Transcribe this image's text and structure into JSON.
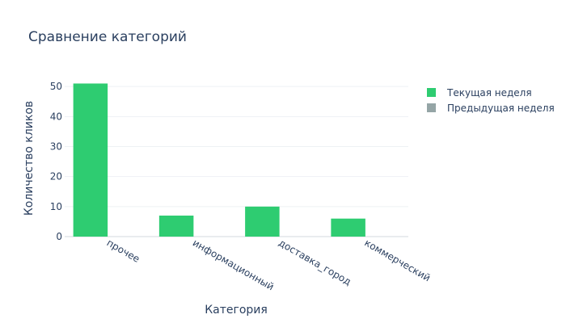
{
  "chart_data": {
    "type": "bar",
    "title": "Сравнение категорий",
    "xlabel": "Категория",
    "ylabel": "Количество кликов",
    "categories": [
      "прочее",
      "информационный",
      "доставка_город",
      "коммерческий"
    ],
    "series": [
      {
        "name": "Текущая неделя",
        "values": [
          51,
          7,
          10,
          6
        ],
        "color": "#2ecc71"
      },
      {
        "name": "Предыдущая неделя",
        "values": [
          0,
          0,
          0,
          0
        ],
        "color": "#95a5a6"
      }
    ],
    "ylim": [
      0,
      53
    ],
    "yticks": [
      0,
      10,
      20,
      30,
      40,
      50
    ],
    "grid": true,
    "legend_position": "top-right"
  }
}
